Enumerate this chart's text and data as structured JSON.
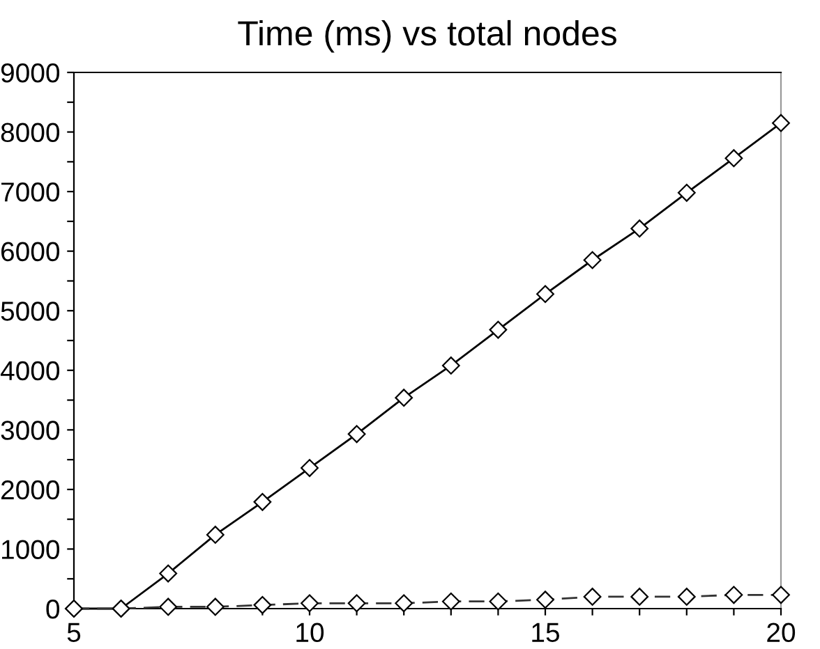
{
  "chart_data": {
    "type": "line",
    "title": "Time (ms) vs total nodes",
    "x": [
      5,
      6,
      7,
      8,
      9,
      10,
      11,
      12,
      13,
      14,
      15,
      16,
      17,
      18,
      19,
      20
    ],
    "series": [
      {
        "color": "#000000",
        "line_style": "solid",
        "values": [
          0,
          0,
          590,
          1240,
          1790,
          2360,
          2930,
          3540,
          4080,
          4680,
          5280,
          5850,
          6380,
          6980,
          7560,
          8150
        ]
      },
      {
        "color": "#333333",
        "line_style": "dashed",
        "values": [
          0,
          0,
          30,
          30,
          60,
          90,
          90,
          90,
          120,
          120,
          150,
          200,
          200,
          200,
          230,
          230
        ]
      }
    ],
    "marker": "diamond",
    "xlim": [
      5,
      20
    ],
    "xticks": [
      5,
      {
        "value": 6,
        "label": null
      },
      {
        "value": 7,
        "label": null
      },
      {
        "value": 8,
        "label": null
      },
      {
        "value": 9,
        "label": null
      },
      10,
      {
        "value": 11,
        "label": null
      },
      {
        "value": 12,
        "label": null
      },
      {
        "value": 13,
        "label": null
      },
      {
        "value": 14,
        "label": null
      },
      15,
      {
        "value": 16,
        "label": null
      },
      {
        "value": 17,
        "label": null
      },
      {
        "value": 18,
        "label": null
      },
      {
        "value": 19,
        "label": null
      },
      20
    ],
    "ylim": [
      0,
      9000
    ],
    "yticks": [
      0,
      {
        "value": 500,
        "label": null
      },
      1000,
      {
        "value": 1500,
        "label": null
      },
      2000,
      {
        "value": 2500,
        "label": null
      },
      3000,
      {
        "value": 3500,
        "label": null
      },
      4000,
      {
        "value": 4500,
        "label": null
      },
      5000,
      {
        "value": 5500,
        "label": null
      },
      6000,
      {
        "value": 6500,
        "label": null
      },
      7000,
      {
        "value": 7500,
        "label": null
      },
      8000,
      {
        "value": 8500,
        "label": null
      },
      9000
    ],
    "grid": false,
    "legend": false
  }
}
